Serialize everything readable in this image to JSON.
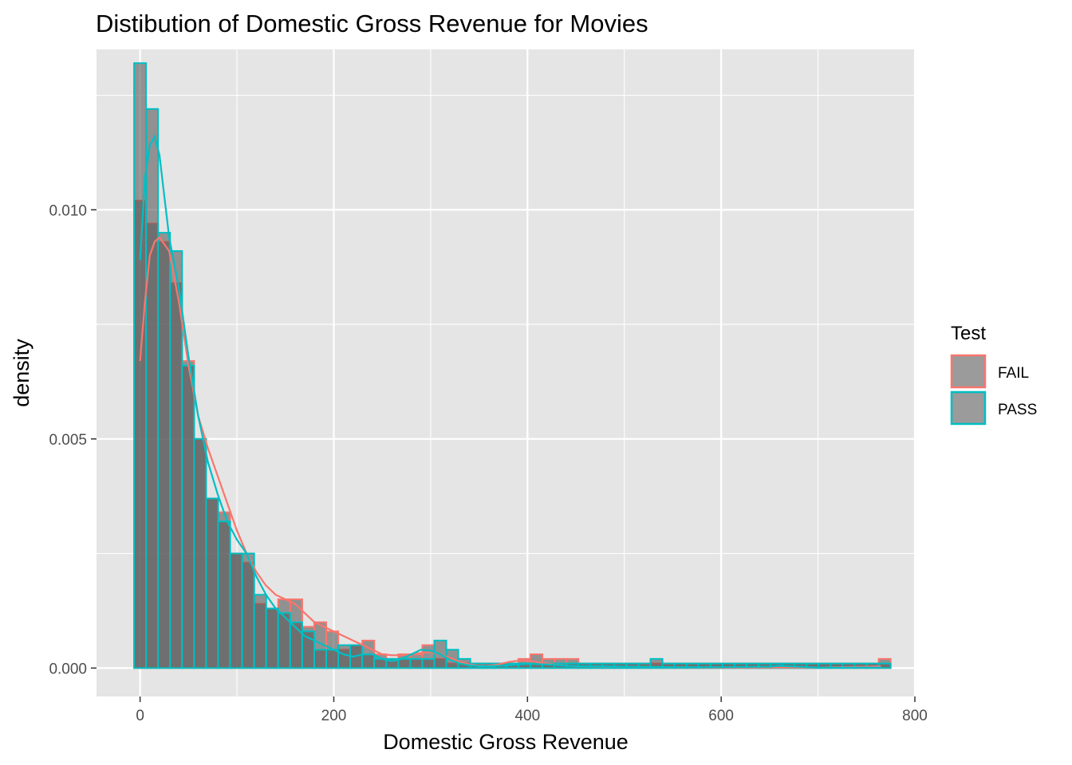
{
  "chart_data": {
    "type": "histogram",
    "title": "Distibution of Domestic Gross Revenue for Movies",
    "xlabel": "Domestic Gross Revenue",
    "ylabel": "density",
    "xlim": [
      -45,
      800
    ],
    "ylim": [
      -0.00062,
      0.0135
    ],
    "x_ticks": [
      0,
      200,
      400,
      600,
      800
    ],
    "y_ticks": [
      0.0,
      0.005,
      0.01
    ],
    "x_tick_labels": [
      "0",
      "200",
      "400",
      "600",
      "800"
    ],
    "y_tick_labels": [
      "0.000",
      "0.005",
      "0.010"
    ],
    "bin_width": 12.4,
    "bin_start": -6.2,
    "legend": {
      "title": "Test",
      "position": "right",
      "entries": [
        "FAIL",
        "PASS"
      ]
    },
    "colors": {
      "panel": "#e5e5e5",
      "grid": "#ffffff",
      "bar_fill": "#595959",
      "bar_fill_opacity": 0.6,
      "FAIL": "#f8766d",
      "PASS": "#00bfc4"
    },
    "series": [
      {
        "name": "FAIL",
        "bin_values": [
          0.0102,
          0.0097,
          0.0093,
          0.0084,
          0.0067,
          0.005,
          0.0037,
          0.0034,
          0.0025,
          0.0023,
          0.0014,
          0.0013,
          0.0015,
          0.0015,
          0.0009,
          0.001,
          0.0008,
          0.0004,
          0.0005,
          0.0006,
          0.0003,
          0.0002,
          0.0003,
          0.0003,
          0.0005,
          0.0002,
          0.0001,
          0.0001,
          0.0001,
          0.0001,
          0.0001,
          0.0001,
          0.0002,
          0.0003,
          0.0002,
          0.0002,
          0.0002,
          0.0001,
          0.0001,
          0.0001,
          0.0001,
          0.0001,
          0.0001,
          0.0001,
          0.0001,
          0.0001,
          0.0001,
          0.0001,
          0.0001,
          0.0001,
          0.0001,
          0.0001,
          0.0001,
          0.0001,
          0.0001,
          0.0001,
          0.0001,
          0.0001,
          0.0001,
          0.0001,
          0.0001,
          0.0001,
          0.0002
        ],
        "density_x": [
          0,
          5,
          10,
          15,
          20,
          30,
          40,
          50,
          60,
          70,
          80,
          90,
          100,
          110,
          120,
          130,
          140,
          150,
          160,
          170,
          180,
          190,
          200,
          210,
          220,
          230,
          240,
          250,
          260,
          270,
          280,
          290,
          300,
          310,
          320,
          330,
          340,
          350,
          360,
          370,
          380,
          390,
          400,
          410,
          420,
          430,
          450,
          500,
          550,
          600,
          650,
          700,
          750,
          765
        ],
        "density_y": [
          0.0067,
          0.008,
          0.009,
          0.0093,
          0.0094,
          0.0091,
          0.008,
          0.0066,
          0.0055,
          0.0048,
          0.0042,
          0.0036,
          0.003,
          0.0025,
          0.0021,
          0.0018,
          0.0016,
          0.0015,
          0.0014,
          0.0012,
          0.001,
          0.0009,
          0.0008,
          0.0007,
          0.0006,
          0.0005,
          0.0004,
          0.0003,
          0.00028,
          0.00028,
          0.0003,
          0.00033,
          0.00035,
          0.0003,
          0.00022,
          0.00014,
          8e-05,
          5e-05,
          5e-05,
          8e-05,
          0.00013,
          0.00016,
          0.00016,
          0.00013,
          0.0001,
          7e-05,
          4e-05,
          3e-05,
          2e-05,
          1e-05,
          1e-05,
          1e-05,
          3e-05,
          4e-05
        ]
      },
      {
        "name": "PASS",
        "bin_values": [
          0.0132,
          0.0122,
          0.0095,
          0.0091,
          0.0066,
          0.005,
          0.0037,
          0.0032,
          0.0025,
          0.0025,
          0.0016,
          0.0013,
          0.0012,
          0.001,
          0.0008,
          0.0004,
          0.0004,
          0.0005,
          0.0005,
          0.0003,
          0.0002,
          0.0002,
          0.0002,
          0.0002,
          0.0002,
          0.0006,
          0.0004,
          0.0002,
          0.0001,
          0.0001,
          0.0001,
          0.0001,
          0.0001,
          0.0001,
          0.0001,
          0.0001,
          0.0001,
          0.0001,
          0.0001,
          0.0001,
          0.0001,
          0.0001,
          0.0001,
          0.0002,
          0.0001,
          0.0001,
          0.0001,
          0.0001,
          0.0001,
          0.0001,
          0.0001,
          0.0001,
          0.0001,
          0.0001,
          0.0001,
          0.0001,
          0.0001,
          0.0001,
          0.0001,
          0.0001,
          0.0001,
          0.0001,
          0.0001
        ],
        "density_x": [
          0,
          5,
          10,
          15,
          20,
          30,
          40,
          50,
          60,
          70,
          80,
          90,
          100,
          110,
          120,
          130,
          140,
          150,
          160,
          170,
          180,
          190,
          200,
          210,
          220,
          230,
          240,
          250,
          260,
          270,
          280,
          290,
          300,
          310,
          320,
          330,
          340,
          350,
          360,
          380,
          400,
          420,
          440,
          460,
          480,
          500,
          550,
          600,
          650,
          660,
          680,
          700,
          750,
          765
        ],
        "density_y": [
          0.0089,
          0.0107,
          0.0114,
          0.0116,
          0.0112,
          0.0094,
          0.0083,
          0.0068,
          0.0055,
          0.0045,
          0.0038,
          0.0032,
          0.0028,
          0.0025,
          0.002,
          0.0016,
          0.0013,
          0.0011,
          0.0009,
          0.0007,
          0.0006,
          0.0005,
          0.0004,
          0.0003,
          0.00025,
          0.0003,
          0.0003,
          0.0002,
          0.00015,
          0.0002,
          0.0003,
          0.0004,
          0.00038,
          0.0003,
          0.00018,
          0.0001,
          6e-05,
          4e-05,
          4e-05,
          6e-05,
          9e-05,
          8e-05,
          5e-05,
          4e-05,
          4e-05,
          3e-05,
          2e-05,
          2e-05,
          3e-05,
          5e-05,
          3e-05,
          1e-05,
          1e-05,
          1e-05
        ]
      }
    ]
  }
}
